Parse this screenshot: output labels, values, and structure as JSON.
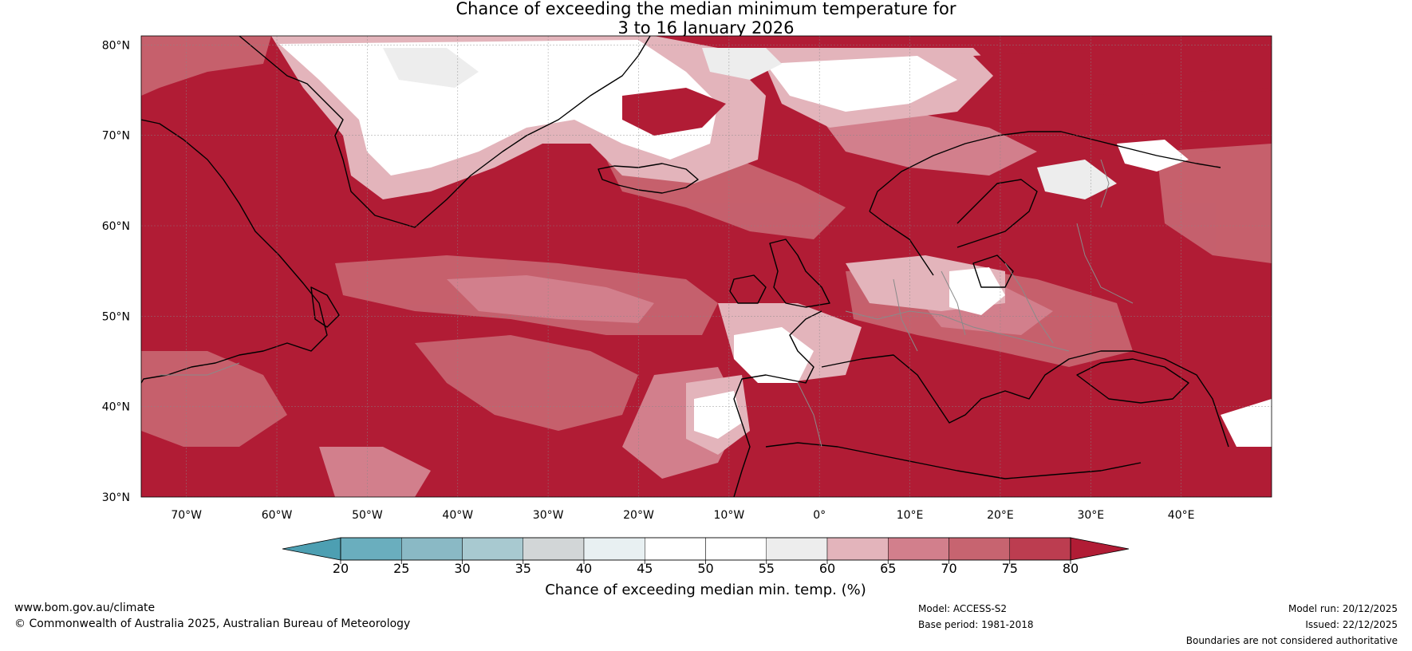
{
  "title": {
    "line1": "Chance of exceeding the median minimum temperature for",
    "line2": "3 to 16 January 2026"
  },
  "map": {
    "projection": "plate-carree",
    "lon_range": [
      -75,
      50
    ],
    "lat_range": [
      30,
      81
    ],
    "lat_ticks": [
      {
        "value": 80,
        "label": "80°N"
      },
      {
        "value": 70,
        "label": "70°N"
      },
      {
        "value": 60,
        "label": "60°N"
      },
      {
        "value": 50,
        "label": "50°N"
      },
      {
        "value": 40,
        "label": "40°N"
      },
      {
        "value": 30,
        "label": "30°N"
      }
    ],
    "lon_ticks": [
      {
        "value": -70,
        "label": "70°W"
      },
      {
        "value": -60,
        "label": "60°W"
      },
      {
        "value": -50,
        "label": "50°W"
      },
      {
        "value": -40,
        "label": "40°W"
      },
      {
        "value": -30,
        "label": "30°W"
      },
      {
        "value": -20,
        "label": "20°W"
      },
      {
        "value": -10,
        "label": "10°W"
      },
      {
        "value": 0,
        "label": "0°"
      },
      {
        "value": 10,
        "label": "10°E"
      },
      {
        "value": 20,
        "label": "20°E"
      },
      {
        "value": 30,
        "label": "30°E"
      },
      {
        "value": 40,
        "label": "40°E"
      }
    ],
    "dominant_fill_color": "#b11c35",
    "coastline_color": "#000000",
    "border_color": "#8a8a8a"
  },
  "colorbar": {
    "label": "Chance of exceeding median min. temp. (%)",
    "ticks": [
      "20",
      "25",
      "30",
      "35",
      "40",
      "45",
      "50",
      "55",
      "60",
      "65",
      "70",
      "75",
      "80"
    ],
    "under_color": "#4d9fb2",
    "over_color": "#b11c35",
    "bin_colors": [
      "#6aaebe",
      "#8ab9c5",
      "#a8c9d0",
      "#d2d6d7",
      "#e8f0f2",
      "#ffffff",
      "#ffffff",
      "#ededed",
      "#e3b4bb",
      "#d27f8c",
      "#c76470",
      "#bc3d50"
    ]
  },
  "footer": {
    "website": "www.bom.gov.au/climate",
    "copyright": "© Commonwealth of Australia 2025, Australian Bureau of Meteorology",
    "model": "Model: ACCESS-S2",
    "base_period": "Base period: 1981-2018",
    "model_run": "Model run: 20/12/2025",
    "issued": "Issued: 22/12/2025",
    "disclaimer": "Boundaries are not considered authoritative"
  }
}
